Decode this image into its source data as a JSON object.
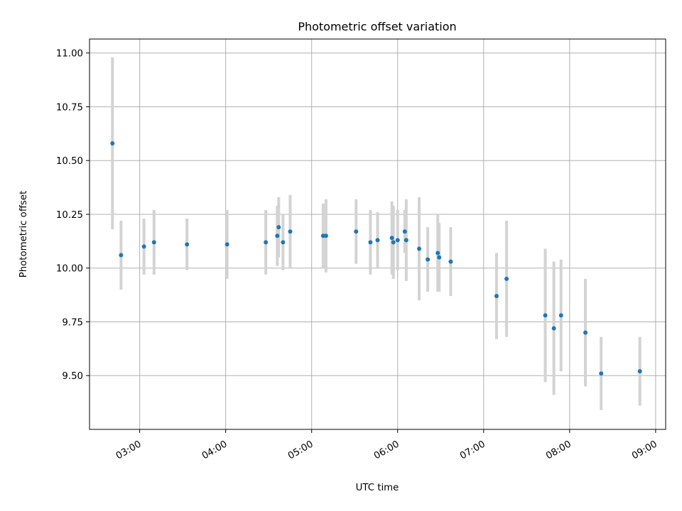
{
  "chart_data": {
    "type": "scatter",
    "title": "Photometric offset variation",
    "xlabel": "UTC time",
    "ylabel": "Photometric offset",
    "x_format": "HH:MM",
    "xlim": [
      "02:25",
      "09:07"
    ],
    "ylim": [
      9.25,
      11.065
    ],
    "grid": true,
    "x_ticks": [
      "03:00",
      "04:00",
      "05:00",
      "06:00",
      "07:00",
      "08:00",
      "09:00"
    ],
    "y_ticks": [
      "9.50",
      "9.75",
      "10.00",
      "10.25",
      "10.50",
      "10.75",
      "11.00"
    ],
    "colors": {
      "point": "#1f77b4",
      "errorbar": "#d3d3d3",
      "grid": "#b0b0b0"
    },
    "series": [
      {
        "points": [
          {
            "x": "02:41",
            "y": 10.58,
            "err": 0.4
          },
          {
            "x": "02:47",
            "y": 10.06,
            "err": 0.16
          },
          {
            "x": "03:03",
            "y": 10.1,
            "err": 0.13
          },
          {
            "x": "03:10",
            "y": 10.12,
            "err": 0.15
          },
          {
            "x": "03:33",
            "y": 10.11,
            "err": 0.12
          },
          {
            "x": "04:01",
            "y": 10.11,
            "err": 0.16
          },
          {
            "x": "04:28",
            "y": 10.12,
            "err": 0.15
          },
          {
            "x": "04:36",
            "y": 10.15,
            "err": 0.14
          },
          {
            "x": "04:37",
            "y": 10.19,
            "err": 0.14
          },
          {
            "x": "04:40",
            "y": 10.12,
            "err": 0.13
          },
          {
            "x": "04:45",
            "y": 10.17,
            "err": 0.17
          },
          {
            "x": "05:08",
            "y": 10.15,
            "err": 0.15
          },
          {
            "x": "05:10",
            "y": 10.15,
            "err": 0.17
          },
          {
            "x": "05:31",
            "y": 10.17,
            "err": 0.15
          },
          {
            "x": "05:41",
            "y": 10.12,
            "err": 0.15
          },
          {
            "x": "05:46",
            "y": 10.13,
            "err": 0.13
          },
          {
            "x": "05:56",
            "y": 10.14,
            "err": 0.17
          },
          {
            "x": "05:57",
            "y": 10.12,
            "err": 0.17
          },
          {
            "x": "06:00",
            "y": 10.13,
            "err": 0.14
          },
          {
            "x": "06:05",
            "y": 10.17,
            "err": 0.1
          },
          {
            "x": "06:06",
            "y": 10.13,
            "err": 0.19
          },
          {
            "x": "06:15",
            "y": 10.09,
            "err": 0.24
          },
          {
            "x": "06:21",
            "y": 10.04,
            "err": 0.15
          },
          {
            "x": "06:28",
            "y": 10.07,
            "err": 0.18
          },
          {
            "x": "06:29",
            "y": 10.05,
            "err": 0.16
          },
          {
            "x": "06:37",
            "y": 10.03,
            "err": 0.16
          },
          {
            "x": "07:09",
            "y": 9.87,
            "err": 0.2
          },
          {
            "x": "07:16",
            "y": 9.95,
            "err": 0.27
          },
          {
            "x": "07:43",
            "y": 9.78,
            "err": 0.31
          },
          {
            "x": "07:49",
            "y": 9.72,
            "err": 0.31
          },
          {
            "x": "07:54",
            "y": 9.78,
            "err": 0.26
          },
          {
            "x": "08:11",
            "y": 9.7,
            "err": 0.25
          },
          {
            "x": "08:22",
            "y": 9.51,
            "err": 0.17
          },
          {
            "x": "08:49",
            "y": 9.52,
            "err": 0.16
          }
        ]
      }
    ]
  }
}
